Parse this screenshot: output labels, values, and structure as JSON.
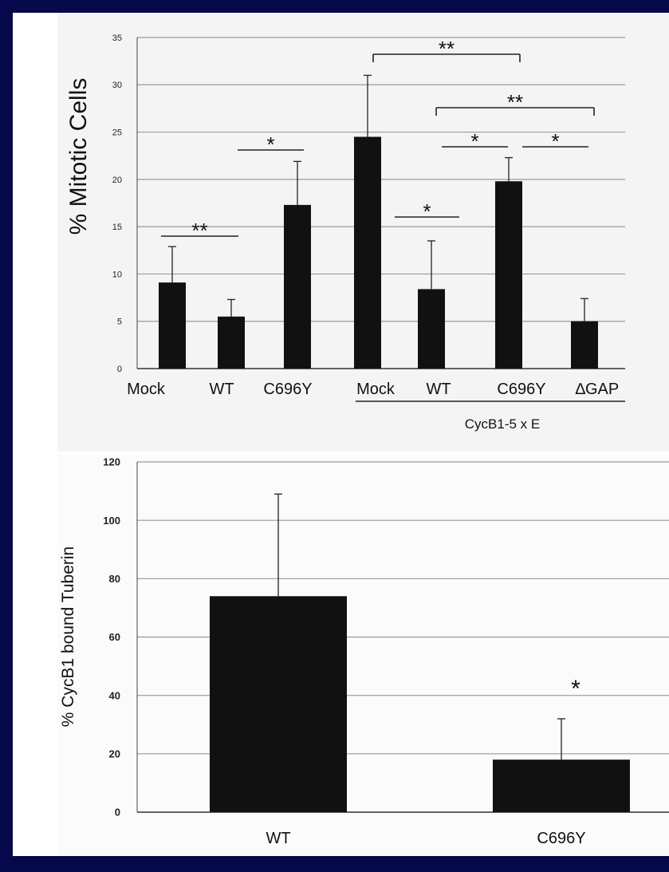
{
  "colors": {
    "frame": "#05084a",
    "bar": "#111111",
    "grid": "#9a9a9a",
    "panel": "#f4f4f4"
  },
  "chart_data": [
    {
      "type": "bar",
      "ylabel": "% Mitotic Cells",
      "ylim": [
        0,
        35
      ],
      "yticks": [
        0,
        5,
        10,
        15,
        20,
        25,
        30,
        35
      ],
      "grid": true,
      "categories": [
        "Mock",
        "WT",
        "C696Y",
        "Mock",
        "WT",
        "C696Y",
        "∆GAP"
      ],
      "values": [
        9.1,
        5.5,
        17.3,
        24.5,
        8.4,
        19.8,
        5.0
      ],
      "errors": [
        3.8,
        1.8,
        4.6,
        6.5,
        5.1,
        2.5,
        2.4
      ],
      "group_label": "CycB1-5 x E",
      "group_members": [
        3,
        4,
        5,
        6
      ],
      "significance": [
        {
          "from": 0,
          "to": 1,
          "label": "**"
        },
        {
          "from": 1,
          "to": 2,
          "label": "*"
        },
        {
          "from": 3,
          "to": 5,
          "label": "**"
        },
        {
          "from": 4,
          "to": 6,
          "label": "**"
        },
        {
          "from": 3,
          "to": 4,
          "label": "*"
        },
        {
          "from": 4,
          "to": 5,
          "label": "*"
        },
        {
          "from": 5,
          "to": 6,
          "label": "*"
        }
      ]
    },
    {
      "type": "bar",
      "ylabel": "% CycB1 bound Tuberin",
      "ylim": [
        0,
        120
      ],
      "yticks": [
        0,
        20,
        40,
        60,
        80,
        100,
        120
      ],
      "grid": true,
      "categories": [
        "WT",
        "C696Y"
      ],
      "values": [
        74,
        18
      ],
      "errors": [
        35,
        14
      ],
      "annotations": [
        {
          "index": 1,
          "label": "*"
        }
      ]
    }
  ]
}
